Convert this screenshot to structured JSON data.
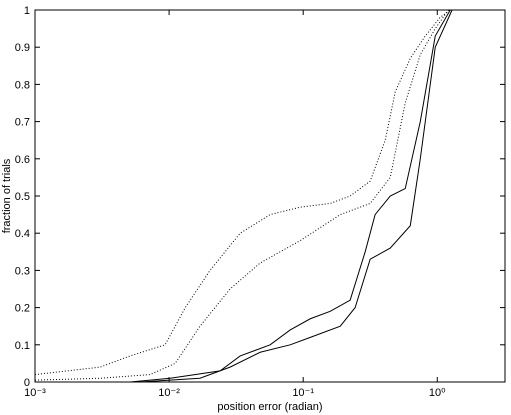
{
  "chart_data": {
    "type": "line",
    "xlabel": "position error (radian)",
    "ylabel": "fraction of trials",
    "xscale": "log",
    "xlim": [
      0.001,
      3.2
    ],
    "ylim": [
      0,
      1
    ],
    "xticks": [
      {
        "value": 0.001,
        "label": "10⁻³"
      },
      {
        "value": 0.01,
        "label": "10⁻²"
      },
      {
        "value": 0.1,
        "label": "10⁻¹"
      },
      {
        "value": 1,
        "label": "10⁰"
      }
    ],
    "yticks": [
      0,
      0.1,
      0.2,
      0.3,
      0.4,
      0.5,
      0.6,
      0.7,
      0.8,
      0.9,
      1
    ],
    "grid": false,
    "series": [
      {
        "color": "#000000",
        "style": "dotted",
        "x": [
          0.001,
          0.00306,
          0.00512,
          0.00934,
          0.0132,
          0.0202,
          0.0339,
          0.0567,
          0.095,
          0.159,
          0.224,
          0.316,
          0.409,
          0.486,
          0.629,
          0.813,
          1.05,
          1.25
        ],
        "values": [
          0.02,
          0.04,
          0.07,
          0.1,
          0.2,
          0.3,
          0.4,
          0.45,
          0.47,
          0.48,
          0.5,
          0.54,
          0.65,
          0.78,
          0.87,
          0.93,
          0.98,
          1
        ]
      },
      {
        "color": "#000000",
        "style": "dotted",
        "x": [
          0.001,
          0.00306,
          0.00722,
          0.0111,
          0.017,
          0.0285,
          0.0478,
          0.095,
          0.189,
          0.316,
          0.446,
          0.577,
          0.747,
          0.966,
          1.21
        ],
        "values": [
          0.005,
          0.01,
          0.02,
          0.05,
          0.15,
          0.25,
          0.32,
          0.38,
          0.45,
          0.48,
          0.55,
          0.75,
          0.88,
          0.95,
          1
        ]
      },
      {
        "color": "#000000",
        "style": "solid",
        "x": [
          0.00512,
          0.0102,
          0.024,
          0.0339,
          0.0567,
          0.08,
          0.113,
          0.159,
          0.224,
          0.29,
          0.344,
          0.446,
          0.577,
          0.747,
          0.966,
          1.25
        ],
        "values": [
          0,
          0.01,
          0.03,
          0.07,
          0.1,
          0.14,
          0.17,
          0.19,
          0.22,
          0.35,
          0.45,
          0.5,
          0.52,
          0.7,
          0.93,
          1
        ]
      },
      {
        "color": "#000000",
        "style": "solid",
        "x": [
          0.00608,
          0.017,
          0.0285,
          0.0478,
          0.08,
          0.113,
          0.189,
          0.244,
          0.316,
          0.446,
          0.629,
          0.747,
          0.966,
          1.29
        ],
        "values": [
          0,
          0.01,
          0.04,
          0.08,
          0.1,
          0.12,
          0.15,
          0.2,
          0.33,
          0.36,
          0.42,
          0.6,
          0.9,
          1
        ]
      }
    ]
  }
}
